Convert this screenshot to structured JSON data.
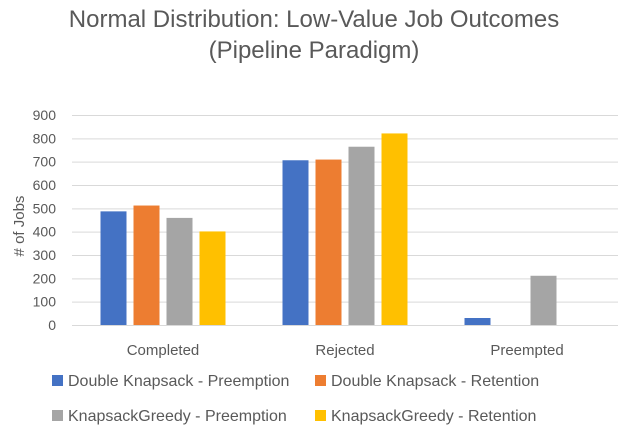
{
  "chart_data": {
    "type": "bar",
    "title_lines": [
      "Normal Distribution: Low-Value Job Outcomes",
      "(Pipeline Paradigm)"
    ],
    "categories": [
      "Completed",
      "Rejected",
      "Preempted"
    ],
    "series": [
      {
        "name": "Double Knapsack - Preemption",
        "color": "#4472C4",
        "values": [
          487,
          706,
          30
        ]
      },
      {
        "name": "Double Knapsack - Retention",
        "color": "#ED7D31",
        "values": [
          512,
          709,
          0
        ]
      },
      {
        "name": "KnapsackGreedy - Preemption",
        "color": "#A5A5A5",
        "values": [
          459,
          764,
          211
        ]
      },
      {
        "name": "KnapsackGreedy - Retention",
        "color": "#FFC000",
        "values": [
          401,
          821,
          0
        ]
      }
    ],
    "xlabel": "",
    "ylabel": "# of Jobs",
    "ylim": [
      0,
      900
    ],
    "yticks": [
      "0",
      "100",
      "200",
      "300",
      "400",
      "500",
      "600",
      "700",
      "800",
      "900"
    ],
    "grid": true,
    "legend_position": "bottom"
  }
}
